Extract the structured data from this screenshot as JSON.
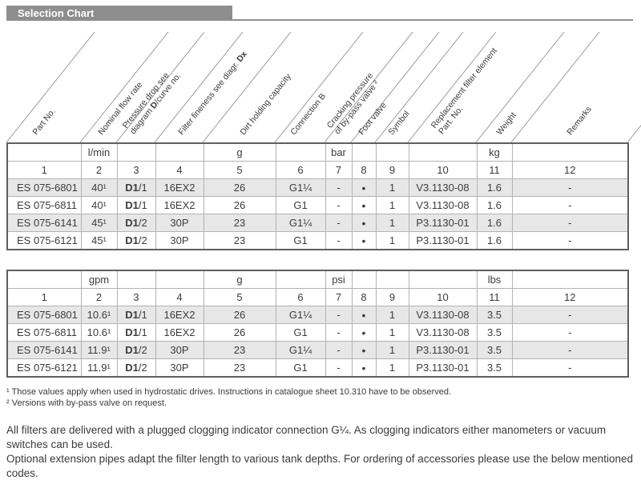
{
  "title": "Selection Chart",
  "columns": [
    {
      "no": "1",
      "label": "Part No."
    },
    {
      "no": "2",
      "label": "Nominal flow rate"
    },
    {
      "no": "3",
      "label": "Pressure drop see\ndiagram **D**/curve no."
    },
    {
      "no": "4",
      "label": "Filter fineness see diagr. **Dx**"
    },
    {
      "no": "5",
      "label": "Dirt holding capacity"
    },
    {
      "no": "6",
      "label": "Connection B"
    },
    {
      "no": "7",
      "label": "Cracking pressure\nof by-pass valve ²"
    },
    {
      "no": "8",
      "label": "Foot valve"
    },
    {
      "no": "9",
      "label": "Symbol"
    },
    {
      "no": "10",
      "label": "Replacement filter element\nPart. No."
    },
    {
      "no": "11",
      "label": "Weight"
    },
    {
      "no": "12",
      "label": "Remarks"
    }
  ],
  "tables": [
    {
      "name": "metric",
      "units": [
        "",
        "l/min",
        "",
        "",
        "g",
        "",
        "bar",
        "",
        "",
        "",
        "kg",
        ""
      ],
      "col_numbers": [
        "1",
        "2",
        "3",
        "4",
        "5",
        "6",
        "7",
        "8",
        "9",
        "10",
        "11",
        "12"
      ],
      "rows": [
        [
          "ES 075-6801",
          "40¹",
          "**D1**/1",
          "16EX2",
          "26",
          "G1¼",
          "-",
          "•",
          "1",
          "V3.1130-08",
          "1.6",
          "-"
        ],
        [
          "ES 075-6811",
          "40¹",
          "**D1**/1",
          "16EX2",
          "26",
          "G1",
          "-",
          "•",
          "1",
          "V3.1130-08",
          "1.6",
          "-"
        ],
        [
          "ES 075-6141",
          "45¹",
          "**D1**/2",
          "30P",
          "23",
          "G1¼",
          "-",
          "•",
          "1",
          "P3.1130-01",
          "1.6",
          "-"
        ],
        [
          "ES 075-6121",
          "45¹",
          "**D1**/2",
          "30P",
          "23",
          "G1",
          "-",
          "•",
          "1",
          "P3.1130-01",
          "1.6",
          "-"
        ]
      ]
    },
    {
      "name": "imperial",
      "units": [
        "",
        "gpm",
        "",
        "",
        "g",
        "",
        "psi",
        "",
        "",
        "",
        "lbs",
        ""
      ],
      "col_numbers": [
        "1",
        "2",
        "3",
        "4",
        "5",
        "6",
        "7",
        "8",
        "9",
        "10",
        "11",
        "12"
      ],
      "rows": [
        [
          "ES 075-6801",
          "10.6¹",
          "**D1**/1",
          "16EX2",
          "26",
          "G1¼",
          "-",
          "•",
          "1",
          "V3.1130-08",
          "3.5",
          "-"
        ],
        [
          "ES 075-6811",
          "10.6¹",
          "**D1**/1",
          "16EX2",
          "26",
          "G1",
          "-",
          "•",
          "1",
          "V3.1130-08",
          "3.5",
          "-"
        ],
        [
          "ES 075-6141",
          "11.9¹",
          "**D1**/2",
          "30P",
          "23",
          "G1¼",
          "-",
          "•",
          "1",
          "P3.1130-01",
          "3.5",
          "-"
        ],
        [
          "ES 075-6121",
          "11.9¹",
          "**D1**/2",
          "30P",
          "23",
          "G1",
          "-",
          "•",
          "1",
          "P3.1130-01",
          "3.5",
          "-"
        ]
      ]
    }
  ],
  "footnotes": [
    "¹ Those values apply when used in hydrostatic drives. Instructions in catalogue sheet 10.310 have to be observed.",
    "² Versions with by-pass valve on request."
  ],
  "paragraphs": [
    "All filters are delivered with a plugged clogging indicator connection G¼. As clogging indicators either manometers or vacuum switches can be used.",
    "Optional extension pipes adapt the filter length to various tank depths. For ordering of accessories please use the below mentioned codes."
  ],
  "colors": {
    "title_bar": "#8e8e8e",
    "row_shade": "#e7e7e7",
    "outer_border": "#5f5f5f",
    "inner_border": "#b3b3b3",
    "diagonal_line": "#9a9a9a",
    "text": "#3c3c3c"
  }
}
